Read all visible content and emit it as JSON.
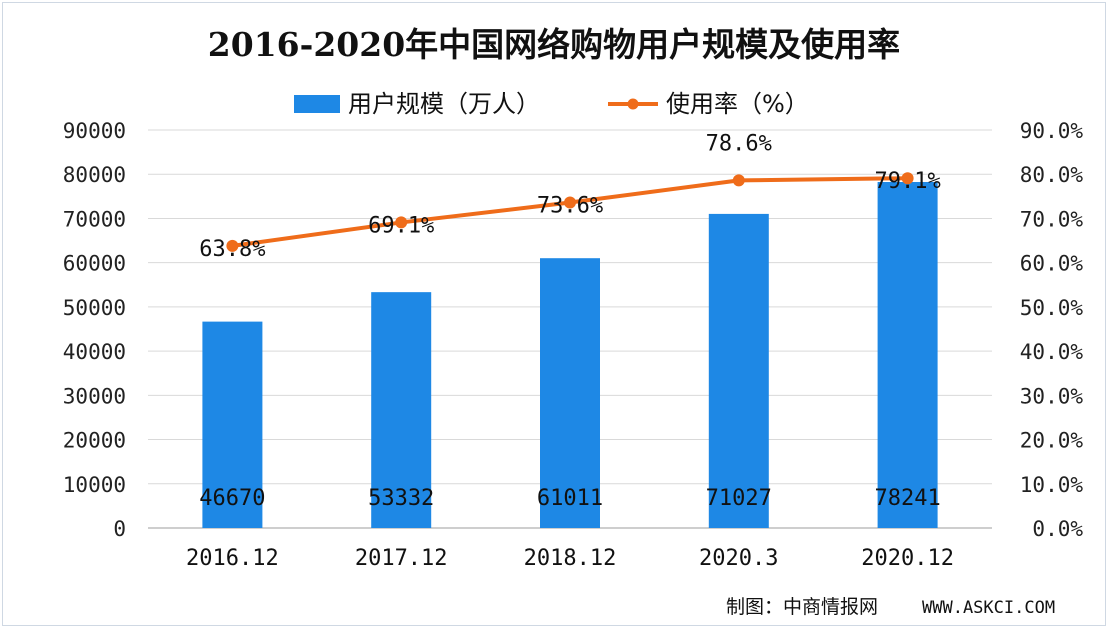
{
  "chart_data": {
    "type": "bar",
    "title": "2016-2020年中国网络购物用户规模及使用率",
    "categories": [
      "2016.12",
      "2017.12",
      "2018.12",
      "2020.3",
      "2020.12"
    ],
    "series": [
      {
        "name": "用户规模（万人）",
        "type": "bar",
        "axis": "left",
        "values": [
          46670,
          53332,
          61011,
          71027,
          78241
        ],
        "color": "#1e88e5"
      },
      {
        "name": "使用率（%）",
        "type": "line",
        "axis": "right",
        "values": [
          63.8,
          69.1,
          73.6,
          78.6,
          79.1
        ],
        "color": "#ef6c1a"
      }
    ],
    "data_labels": {
      "bar": [
        "46670",
        "53332",
        "61011",
        "71027",
        "78241"
      ],
      "line": [
        "63.8%",
        "69.1%",
        "73.6%",
        "78.6%",
        "79.1%"
      ]
    },
    "y_left": {
      "ylim": [
        0,
        90000
      ],
      "ticks": [
        "0",
        "10000",
        "20000",
        "30000",
        "40000",
        "50000",
        "60000",
        "70000",
        "80000",
        "90000"
      ]
    },
    "y_right": {
      "ylim": [
        0,
        90
      ],
      "ticks": [
        "0.0%",
        "10.0%",
        "20.0%",
        "30.0%",
        "40.0%",
        "50.0%",
        "60.0%",
        "70.0%",
        "80.0%",
        "90.0%"
      ]
    },
    "grid": true,
    "legend": "top"
  },
  "footer": {
    "source_label": "制图：中商情报网",
    "source_url": "WWW.ASKCI.COM"
  }
}
